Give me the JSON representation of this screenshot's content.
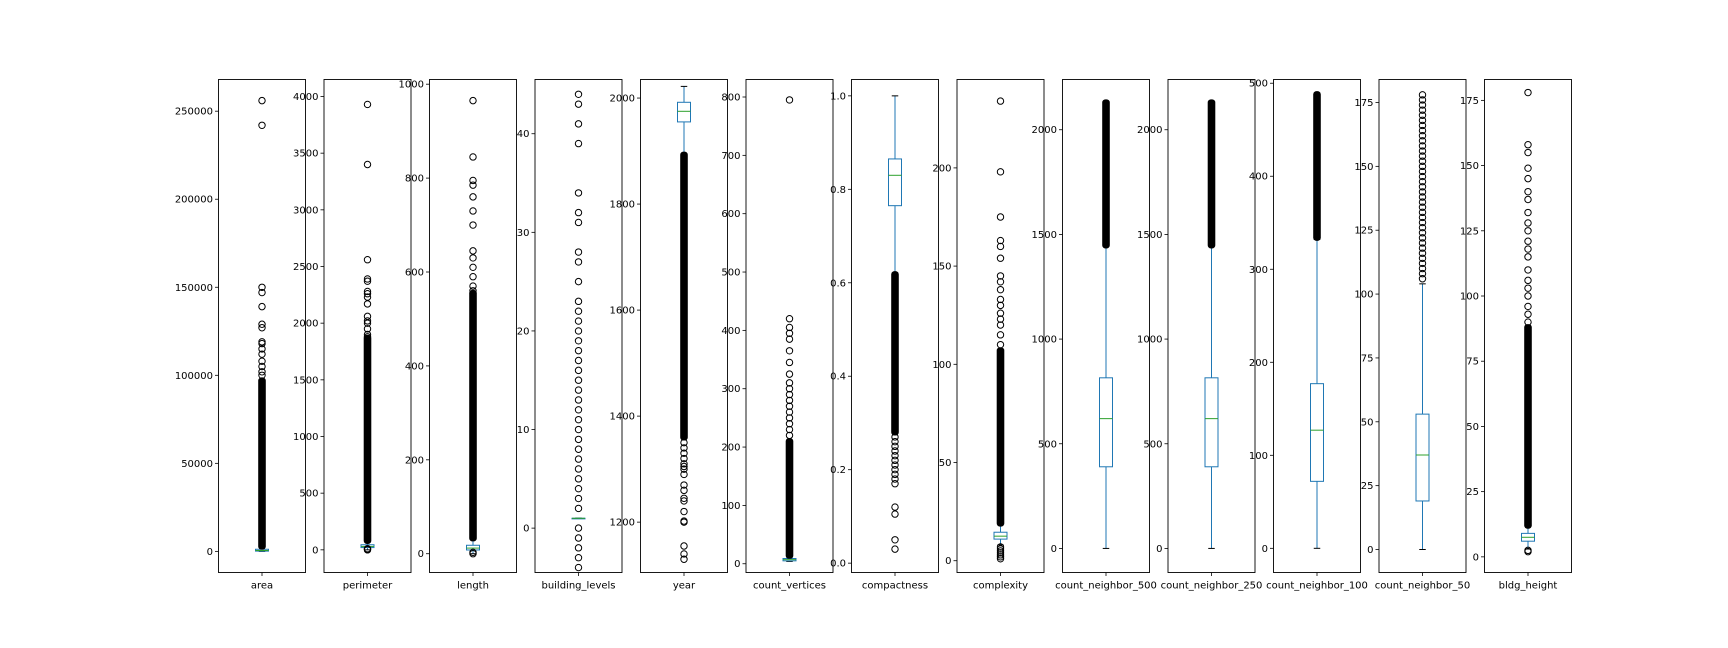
{
  "colors": {
    "box": "#1f77b4",
    "median": "#2ca02c",
    "frame": "#000000",
    "flier": "#000000"
  },
  "chart_data": {
    "type": "box",
    "grid": false,
    "legend": "none",
    "title": "",
    "subplots": [
      {
        "label": "area",
        "ylim": [
          -12000,
          268000
        ],
        "yticks": [
          0,
          50000,
          100000,
          150000,
          200000,
          250000
        ],
        "tick_labels": [
          "0",
          "50000",
          "100000",
          "150000",
          "200000",
          "250000"
        ],
        "box": {
          "whislo": 0,
          "q1": 150,
          "med": 500,
          "q3": 1200,
          "whishi": 2800
        },
        "flier_band": [
          2800,
          97000
        ],
        "outliers": [
          100000,
          102000,
          105000,
          108000,
          112000,
          115000,
          118000,
          119000,
          127000,
          129000,
          139000,
          147000,
          150000,
          242000,
          256000
        ]
      },
      {
        "label": "perimeter",
        "ylim": [
          -200,
          4150
        ],
        "yticks": [
          0,
          500,
          1000,
          1500,
          2000,
          2500,
          3000,
          3500,
          4000
        ],
        "tick_labels": [
          "0",
          "500",
          "1000",
          "1500",
          "2000",
          "2500",
          "3000",
          "3500",
          "4000"
        ],
        "box": {
          "whislo": 0,
          "q1": 20,
          "med": 30,
          "q3": 45,
          "whishi": 80
        },
        "flier_band": [
          80,
          1870
        ],
        "outliers": [
          0,
          5,
          10,
          1880,
          1900,
          1950,
          2000,
          2020,
          2060,
          2170,
          2230,
          2260,
          2280,
          2370,
          2390,
          2560,
          3400,
          3930
        ]
      },
      {
        "label": "length",
        "ylim": [
          -40,
          1010
        ],
        "yticks": [
          0,
          200,
          400,
          600,
          800,
          1000
        ],
        "tick_labels": [
          "0",
          "200",
          "400",
          "600",
          "800",
          "1000"
        ],
        "box": {
          "whislo": 0,
          "q1": 8,
          "med": 12,
          "q3": 18,
          "whishi": 33
        },
        "flier_band": [
          33,
          555
        ],
        "outliers": [
          0,
          3,
          560,
          570,
          590,
          610,
          630,
          645,
          700,
          730,
          760,
          785,
          795,
          845,
          965
        ]
      },
      {
        "label": "building_levels",
        "ylim": [
          -4.5,
          45.5
        ],
        "yticks": [
          0,
          10,
          20,
          30,
          40
        ],
        "tick_labels": [
          "0",
          "10",
          "20",
          "30",
          "40"
        ],
        "box": {
          "whislo": 1,
          "q1": 1,
          "med": 1,
          "q3": 1,
          "whishi": 1
        },
        "flier_band": null,
        "outliers": [
          -4,
          -3,
          -2,
          -1,
          0,
          2,
          3,
          4,
          5,
          6,
          7,
          8,
          9,
          10,
          11,
          12,
          13,
          14,
          15,
          16,
          17,
          18,
          19,
          20,
          21,
          22,
          23,
          25,
          27,
          28,
          31,
          32,
          34,
          39,
          41,
          43,
          44
        ]
      },
      {
        "label": "year",
        "ylim": [
          1105,
          2035
        ],
        "yticks": [
          1200,
          1400,
          1600,
          1800,
          2000
        ],
        "tick_labels": [
          "1200",
          "1400",
          "1600",
          "1800",
          "2000"
        ],
        "box": {
          "whislo": 1895,
          "q1": 1955,
          "med": 1975,
          "q3": 1992,
          "whishi": 2022
        },
        "flier_band": [
          1360,
          1893
        ],
        "outliers": [
          1130,
          1140,
          1155,
          1200,
          1202,
          1220,
          1240,
          1245,
          1260,
          1270,
          1290,
          1300,
          1305,
          1310,
          1320,
          1330,
          1340,
          1350
        ]
      },
      {
        "label": "count_vertices",
        "ylim": [
          -15,
          830
        ],
        "yticks": [
          0,
          100,
          200,
          300,
          400,
          500,
          600,
          700,
          800
        ],
        "tick_labels": [
          "0",
          "100",
          "200",
          "300",
          "400",
          "500",
          "600",
          "700",
          "800"
        ],
        "box": {
          "whislo": 4,
          "q1": 5,
          "med": 7,
          "q3": 9,
          "whishi": 14
        },
        "flier_band": [
          14,
          210
        ],
        "outliers": [
          220,
          230,
          240,
          250,
          260,
          270,
          280,
          290,
          300,
          310,
          325,
          345,
          365,
          385,
          395,
          405,
          420,
          795
        ]
      },
      {
        "label": "compactness",
        "ylim": [
          -0.02,
          1.035
        ],
        "yticks": [
          0,
          0.2,
          0.4,
          0.6,
          0.8,
          1.0
        ],
        "tick_labels": [
          "0.0",
          "0.2",
          "0.4",
          "0.6",
          "0.8",
          "1.0"
        ],
        "box": {
          "whislo": 0.62,
          "q1": 0.765,
          "med": 0.83,
          "q3": 0.865,
          "whishi": 1.0
        },
        "flier_band": [
          0.28,
          0.618
        ],
        "outliers": [
          0.03,
          0.05,
          0.105,
          0.12,
          0.17,
          0.18,
          0.19,
          0.2,
          0.21,
          0.22,
          0.23,
          0.24,
          0.25,
          0.26,
          0.27
        ]
      },
      {
        "label": "complexity",
        "ylim": [
          -6,
          245
        ],
        "yticks": [
          0,
          50,
          100,
          150,
          200
        ],
        "tick_labels": [
          "0",
          "50",
          "100",
          "150",
          "200"
        ],
        "box": {
          "whislo": 8,
          "q1": 11,
          "med": 12.5,
          "q3": 14.5,
          "whishi": 19
        },
        "flier_band": [
          19,
          107
        ],
        "outliers": [
          1,
          2,
          3,
          4,
          5,
          6,
          7,
          110,
          115,
          120,
          123,
          126,
          130,
          133,
          138,
          142,
          145,
          154,
          160,
          163,
          175,
          198,
          234
        ]
      },
      {
        "label": "count_neighbor_500",
        "ylim": [
          -115,
          2240
        ],
        "yticks": [
          0,
          500,
          1000,
          1500,
          2000
        ],
        "tick_labels": [
          "0",
          "500",
          "1000",
          "1500",
          "2000"
        ],
        "box": {
          "whislo": 0,
          "q1": 390,
          "med": 620,
          "q3": 815,
          "whishi": 1445
        },
        "flier_band": [
          1448,
          2130
        ],
        "outliers": []
      },
      {
        "label": "count_neighbor_250",
        "ylim": [
          -115,
          2240
        ],
        "yticks": [
          0,
          500,
          1000,
          1500,
          2000
        ],
        "tick_labels": [
          "0",
          "500",
          "1000",
          "1500",
          "2000"
        ],
        "box": {
          "whislo": 0,
          "q1": 390,
          "med": 620,
          "q3": 815,
          "whishi": 1445
        },
        "flier_band": [
          1448,
          2130
        ],
        "outliers": []
      },
      {
        "label": "count_neighbor_100",
        "ylim": [
          -26,
          504
        ],
        "yticks": [
          0,
          100,
          200,
          300,
          400,
          500
        ],
        "tick_labels": [
          "0",
          "100",
          "200",
          "300",
          "400",
          "500"
        ],
        "box": {
          "whislo": 0,
          "q1": 72,
          "med": 127,
          "q3": 177,
          "whishi": 332
        },
        "flier_band": [
          334,
          488
        ],
        "outliers": []
      },
      {
        "label": "count_neighbor_50",
        "ylim": [
          -9,
          184
        ],
        "yticks": [
          0,
          25,
          50,
          75,
          100,
          125,
          150,
          175
        ],
        "tick_labels": [
          "0",
          "25",
          "50",
          "75",
          "100",
          "125",
          "150",
          "175"
        ],
        "box": {
          "whislo": 0,
          "q1": 19,
          "med": 37,
          "q3": 53,
          "whishi": 104
        },
        "flier_band": null,
        "outliers": [
          106,
          108,
          110,
          112,
          114,
          116,
          118,
          120,
          122,
          124,
          126,
          128,
          130,
          132,
          134,
          136,
          138,
          140,
          142,
          144,
          146,
          148,
          150,
          152,
          154,
          156,
          158,
          160,
          162,
          164,
          166,
          168,
          170,
          172,
          174,
          176,
          178
        ]
      },
      {
        "label": "bldg_height",
        "ylim": [
          -6,
          183
        ],
        "yticks": [
          0,
          25,
          50,
          75,
          100,
          125,
          150,
          175
        ],
        "tick_labels": [
          "0",
          "25",
          "50",
          "75",
          "100",
          "125",
          "150",
          "175"
        ],
        "box": {
          "whislo": 3,
          "q1": 6,
          "med": 7.5,
          "q3": 9,
          "whishi": 12
        },
        "flier_band": [
          12,
          88
        ],
        "outliers": [
          2,
          2.5,
          90,
          93,
          96,
          100,
          103,
          106,
          110,
          115,
          118,
          121,
          125,
          128,
          132,
          137,
          140,
          145,
          149,
          155,
          158,
          178
        ]
      }
    ]
  }
}
